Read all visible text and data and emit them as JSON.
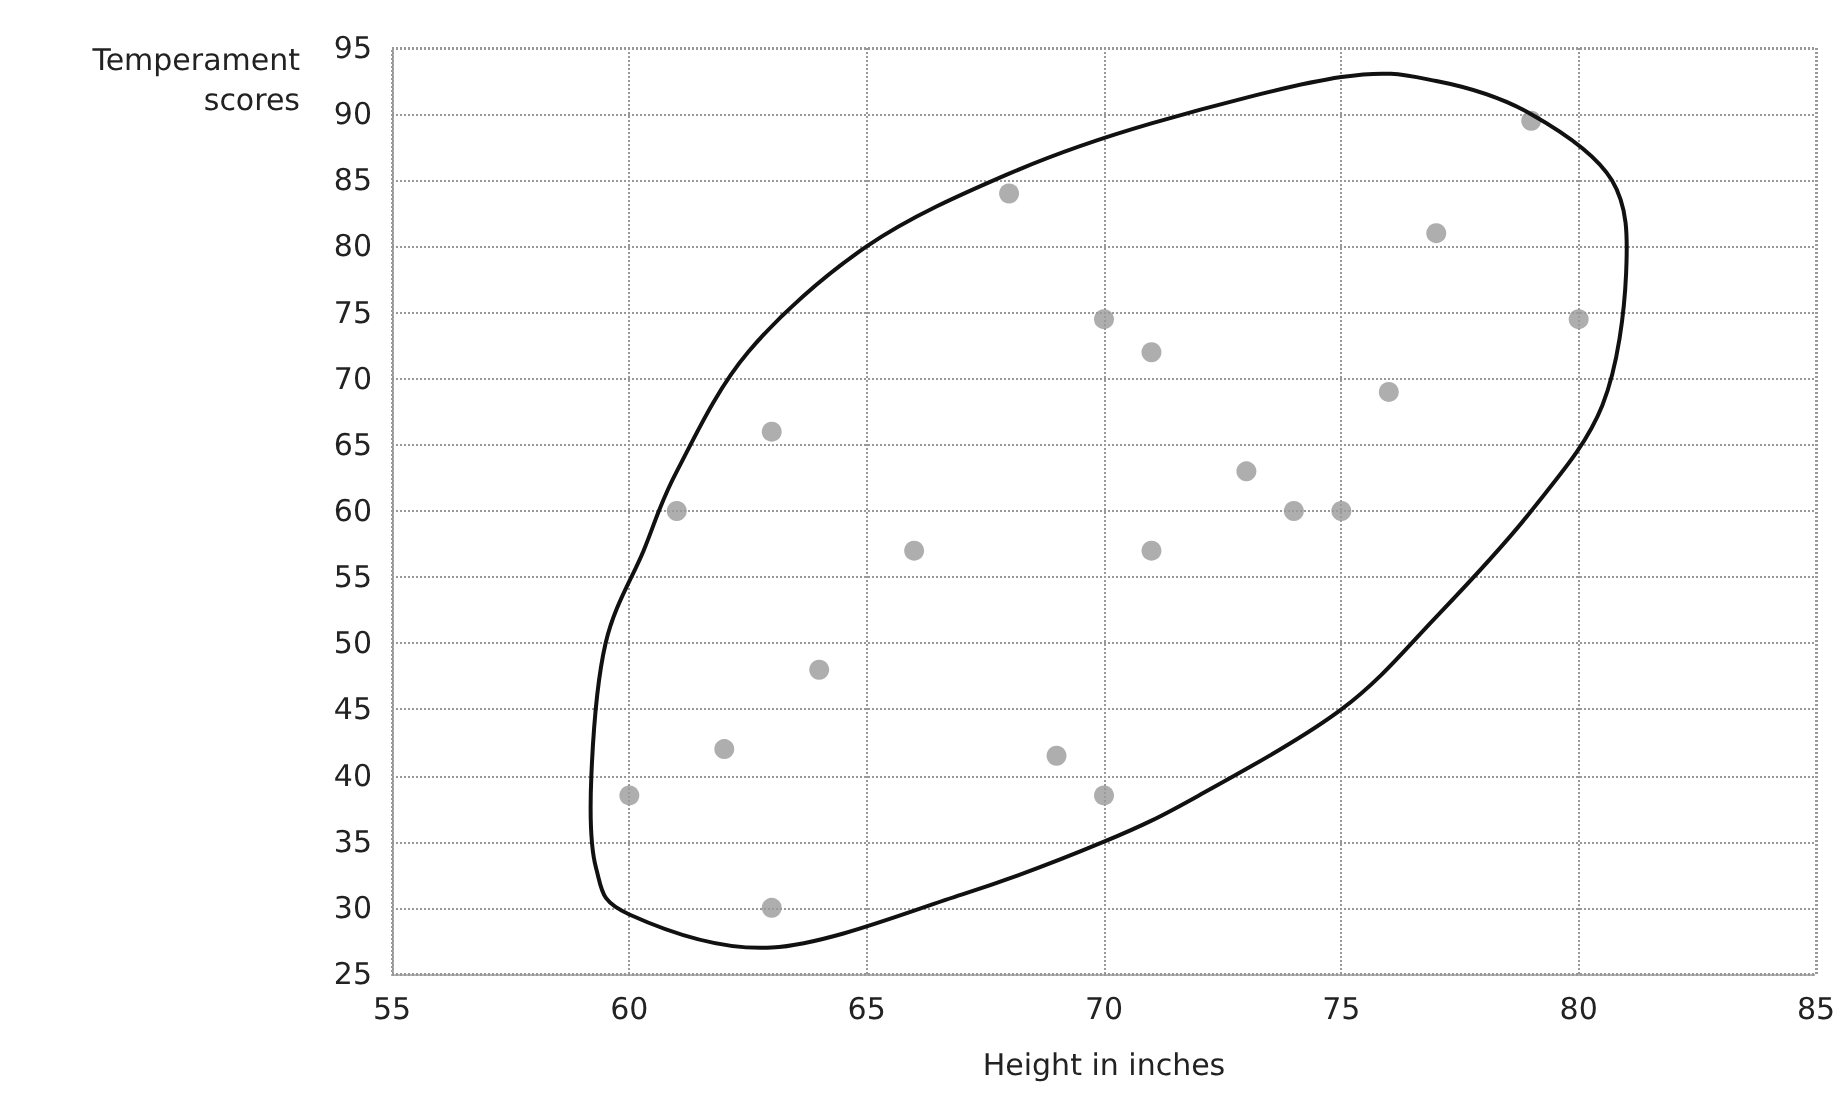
{
  "chart_data": {
    "type": "scatter",
    "xlabel": "Height in inches",
    "ylabel": "Temperament scores",
    "x": [
      60,
      61,
      62,
      63,
      63,
      64,
      66,
      68,
      69,
      70,
      70,
      71,
      71,
      73,
      74,
      75,
      76,
      77,
      79,
      80
    ],
    "values": [
      38.5,
      60,
      42,
      30,
      66,
      48,
      57,
      84,
      41.5,
      38.5,
      74.5,
      72,
      57,
      63,
      60,
      60,
      69,
      81,
      89.5,
      74.5
    ],
    "color": "#9a9a9a",
    "marker": "circle",
    "xlim": [
      55,
      85
    ],
    "xticks": [
      55,
      60,
      65,
      70,
      75,
      80,
      85
    ],
    "ylim": [
      25,
      95
    ],
    "yticks": [
      25,
      30,
      35,
      40,
      45,
      50,
      55,
      60,
      65,
      70,
      75,
      80,
      85,
      90,
      95
    ],
    "grid": true
  }
}
